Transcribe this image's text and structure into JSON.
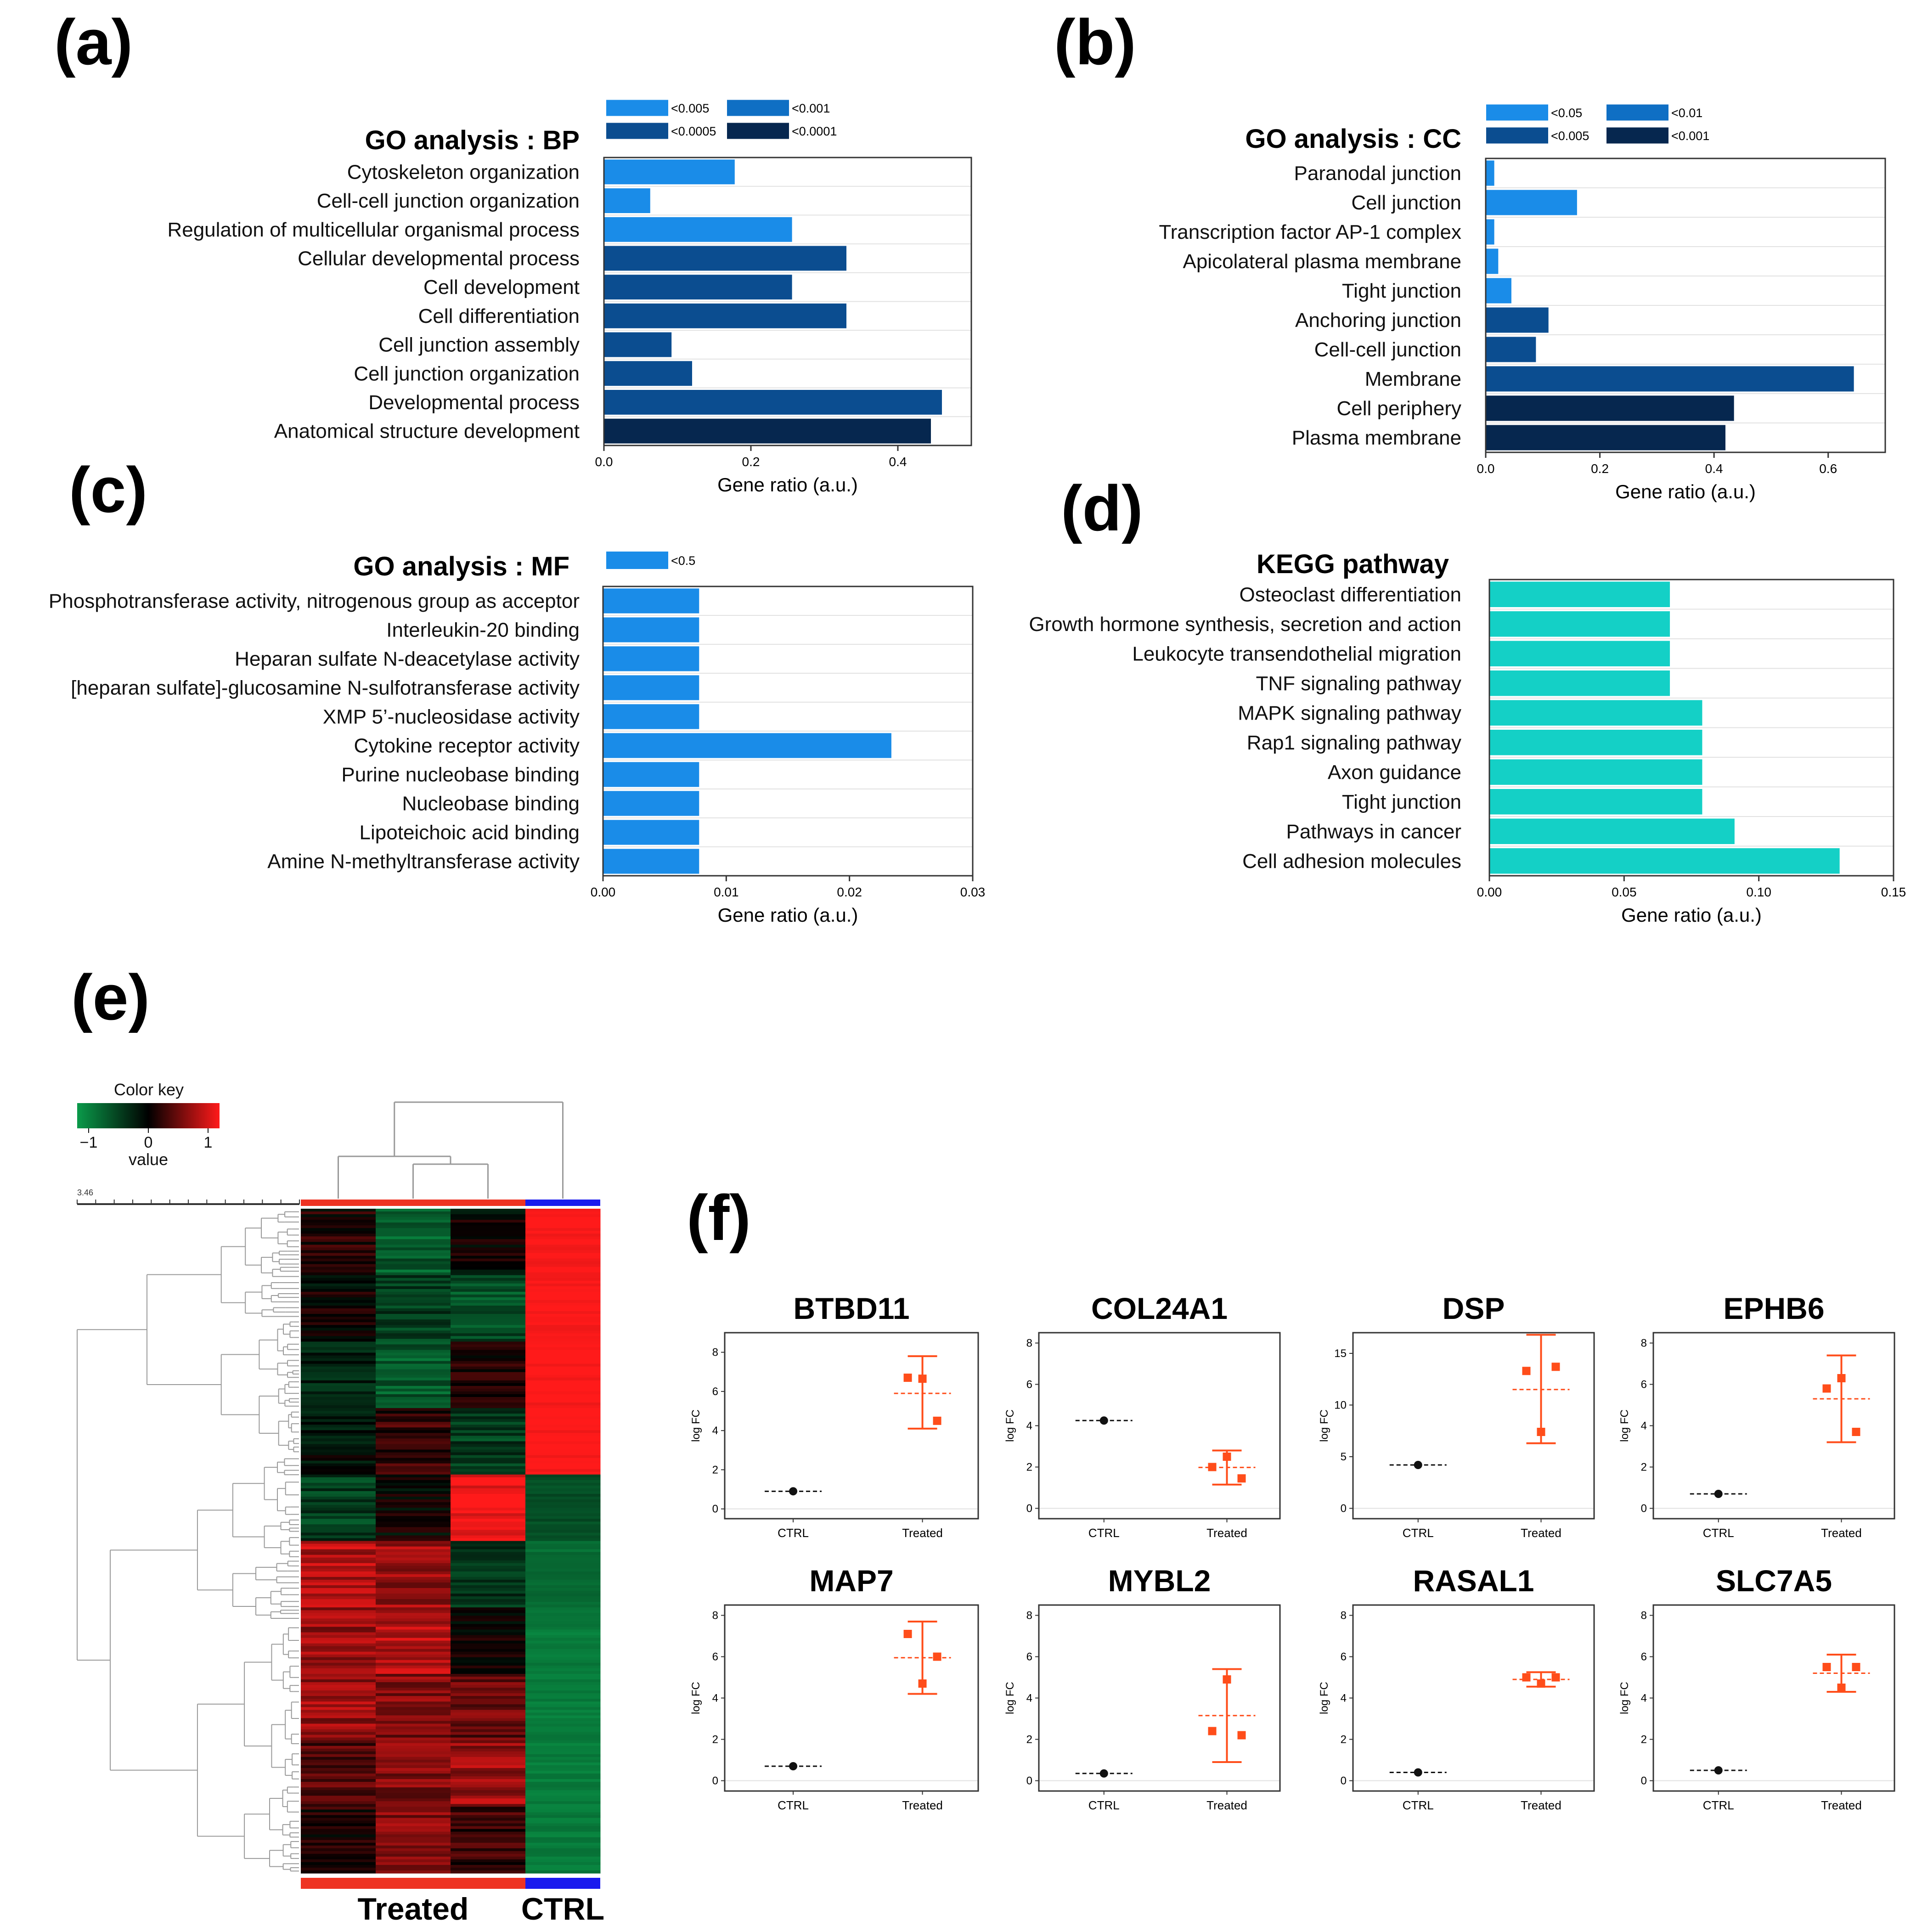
{
  "panel_labels": [
    "(a)",
    "(b)",
    "(c)",
    "(d)",
    "(e)",
    "(f)"
  ],
  "common": {
    "xlabel": "Gene ratio (a.u.)",
    "ylabel_f": "log FC",
    "groups": [
      "CTRL",
      "Treated"
    ]
  },
  "colors": {
    "p1": "#1a8ce8",
    "p2": "#0f6fc4",
    "p3": "#0b4d90",
    "p4": "#06274f",
    "mf": "#1a8ce8",
    "kegg": "#14d0c6",
    "hm_green": "#0a9a4a",
    "hm_black": "#000000",
    "hm_red": "#ff1a1a",
    "treated": "#ee3322",
    "ctrl": "#1a1aee",
    "ctrl_pt": "#111111",
    "treated_pt": "#ff4d1a"
  },
  "chart_data": [
    {
      "id": "a",
      "type": "bar",
      "title": "GO analysis : BP",
      "categories": [
        "Cytoskeleton organization",
        "Cell-cell junction organization",
        "Regulation of multicellular organismal process",
        "Cellular developmental process",
        "Cell development",
        "Cell differentiation",
        "Cell junction assembly",
        "Cell junction organization",
        "Developmental process",
        "Anatomical structure development"
      ],
      "values": [
        0.178,
        0.063,
        0.256,
        0.33,
        0.256,
        0.33,
        0.092,
        0.12,
        0.46,
        0.445
      ],
      "pclass": [
        0,
        0,
        0,
        2,
        2,
        2,
        2,
        2,
        2,
        3
      ],
      "legend": [
        "<0.005",
        "<0.001",
        "<0.0005",
        "<0.0001"
      ],
      "ticks": [
        "0.0",
        "0.2",
        "0.4"
      ],
      "tickvals": [
        0,
        0.2,
        0.4
      ],
      "xlim": [
        0,
        0.5
      ]
    },
    {
      "id": "b",
      "type": "bar",
      "title": "GO analysis : CC",
      "categories": [
        "Paranodal junction",
        "Cell junction",
        "Transcription factor AP-1 complex",
        "Apicolateral plasma membrane",
        "Tight junction",
        "Anchoring junction",
        "Cell-cell junction",
        "Membrane",
        "Cell periphery",
        "Plasma membrane"
      ],
      "values": [
        0.015,
        0.16,
        0.015,
        0.022,
        0.045,
        0.11,
        0.088,
        0.645,
        0.435,
        0.42
      ],
      "pclass": [
        0,
        0,
        0,
        0,
        0,
        2,
        2,
        2,
        3,
        3
      ],
      "legend": [
        "<0.05",
        "<0.01",
        "<0.005",
        "<0.001"
      ],
      "ticks": [
        "0.0",
        "0.2",
        "0.4",
        "0.6"
      ],
      "tickvals": [
        0,
        0.2,
        0.4,
        0.6
      ],
      "xlim": [
        0,
        0.7
      ]
    },
    {
      "id": "c",
      "type": "bar",
      "title": "GO analysis : MF",
      "categories": [
        "Phosphotransferase activity, nitrogenous group as acceptor",
        "Interleukin-20 binding",
        "Heparan sulfate N-deacetylase activity",
        "[heparan sulfate]-glucosamine N-sulfotransferase activity",
        "XMP 5’-nucleosidase activity",
        "Cytokine receptor activity",
        "Purine nucleobase binding",
        "Nucleobase binding",
        "Lipoteichoic acid binding",
        "Amine N-methyltransferase activity"
      ],
      "values": [
        0.0078,
        0.0078,
        0.0078,
        0.0078,
        0.0078,
        0.0234,
        0.0078,
        0.0078,
        0.0078,
        0.0078
      ],
      "legend": [
        "<0.5"
      ],
      "ticks": [
        "0.00",
        "0.01",
        "0.02",
        "0.03"
      ],
      "tickvals": [
        0,
        0.01,
        0.02,
        0.03
      ],
      "xlim": [
        0,
        0.03
      ]
    },
    {
      "id": "d",
      "type": "bar",
      "title": "KEGG pathway",
      "categories": [
        "Osteoclast differentiation",
        "Growth hormone synthesis, secretion and action",
        "Leukocyte transendothelial migration",
        "TNF signaling pathway",
        "MAPK signaling pathway",
        "Rap1 signaling pathway",
        "Axon guidance",
        "Tight junction",
        "Pathways in cancer",
        "Cell adhesion molecules"
      ],
      "values": [
        0.067,
        0.067,
        0.067,
        0.067,
        0.079,
        0.079,
        0.079,
        0.079,
        0.091,
        0.13
      ],
      "ticks": [
        "0.00",
        "0.05",
        "0.10",
        "0.15"
      ],
      "tickvals": [
        0,
        0.05,
        0.1,
        0.15
      ],
      "xlim": [
        0,
        0.15
      ]
    },
    {
      "id": "e",
      "type": "heatmap",
      "color_key_title": "Color key",
      "color_key_label": "value",
      "color_key_ticks": [
        "−1",
        "0",
        "1"
      ],
      "color_key_tickvals": [
        -1,
        0,
        1
      ],
      "scale_label": "3.46",
      "column_groups": [
        "Treated",
        "Treated",
        "Treated",
        "CTRL"
      ],
      "group_labels": [
        "Treated",
        "CTRL"
      ],
      "row_block_values": [
        [
          0.1,
          -0.6,
          0.0,
          1.0
        ],
        [
          0.0,
          -0.4,
          -0.5,
          1.0
        ],
        [
          -0.2,
          -0.6,
          0.1,
          1.0
        ],
        [
          -0.1,
          0.2,
          -0.4,
          1.0
        ],
        [
          -0.4,
          0.0,
          1.0,
          -0.5
        ],
        [
          0.7,
          0.6,
          -0.3,
          -0.7
        ],
        [
          0.6,
          0.7,
          0.0,
          -0.8
        ],
        [
          0.6,
          0.5,
          0.4,
          -0.8
        ],
        [
          0.3,
          0.5,
          0.6,
          -0.8
        ],
        [
          0.1,
          0.5,
          0.2,
          -0.8
        ]
      ]
    },
    {
      "id": "f",
      "type": "scatter",
      "plots": [
        {
          "gene": "BTBD11",
          "ylim": [
            -0.5,
            9
          ],
          "ticks": [
            0,
            2,
            4,
            6,
            8
          ],
          "ctrl": 0.9,
          "treated": [
            6.7,
            6.65,
            4.5
          ],
          "mean": 5.9,
          "err": [
            4.1,
            7.8
          ]
        },
        {
          "gene": "COL24A1",
          "ylim": [
            -0.5,
            8.5
          ],
          "ticks": [
            0,
            2,
            4,
            6,
            8
          ],
          "ctrl": 4.25,
          "treated": [
            2.0,
            2.5,
            1.45
          ],
          "mean": 1.98,
          "err": [
            1.15,
            2.8
          ]
        },
        {
          "gene": "DSP",
          "ylim": [
            -1,
            17
          ],
          "ticks": [
            0,
            5,
            10,
            15
          ],
          "ctrl": 4.2,
          "treated": [
            13.3,
            7.4,
            13.7
          ],
          "mean": 11.5,
          "err": [
            6.3,
            16.8
          ]
        },
        {
          "gene": "EPHB6",
          "ylim": [
            -0.5,
            8.5
          ],
          "ticks": [
            0,
            2,
            4,
            6,
            8
          ],
          "ctrl": 0.7,
          "treated": [
            5.8,
            6.3,
            3.7
          ],
          "mean": 5.3,
          "err": [
            3.2,
            7.4
          ]
        },
        {
          "gene": "MAP7",
          "ylim": [
            -0.5,
            8.5
          ],
          "ticks": [
            0,
            2,
            4,
            6,
            8
          ],
          "ctrl": 0.7,
          "treated": [
            7.1,
            4.7,
            6.0
          ],
          "mean": 5.95,
          "err": [
            4.2,
            7.7
          ]
        },
        {
          "gene": "MYBL2",
          "ylim": [
            -0.5,
            8.5
          ],
          "ticks": [
            0,
            2,
            4,
            6,
            8
          ],
          "ctrl": 0.35,
          "treated": [
            2.4,
            4.9,
            2.2
          ],
          "mean": 3.15,
          "err": [
            0.9,
            5.4
          ]
        },
        {
          "gene": "RASAL1",
          "ylim": [
            -0.5,
            8.5
          ],
          "ticks": [
            0,
            2,
            4,
            6,
            8
          ],
          "ctrl": 0.4,
          "treated": [
            5.0,
            4.7,
            5.0
          ],
          "mean": 4.9,
          "err": [
            4.55,
            5.25
          ]
        },
        {
          "gene": "SLC7A5",
          "ylim": [
            -0.5,
            8.5
          ],
          "ticks": [
            0,
            2,
            4,
            6,
            8
          ],
          "ctrl": 0.5,
          "treated": [
            5.5,
            4.5,
            5.5
          ],
          "mean": 5.2,
          "err": [
            4.3,
            6.1
          ]
        }
      ]
    }
  ]
}
